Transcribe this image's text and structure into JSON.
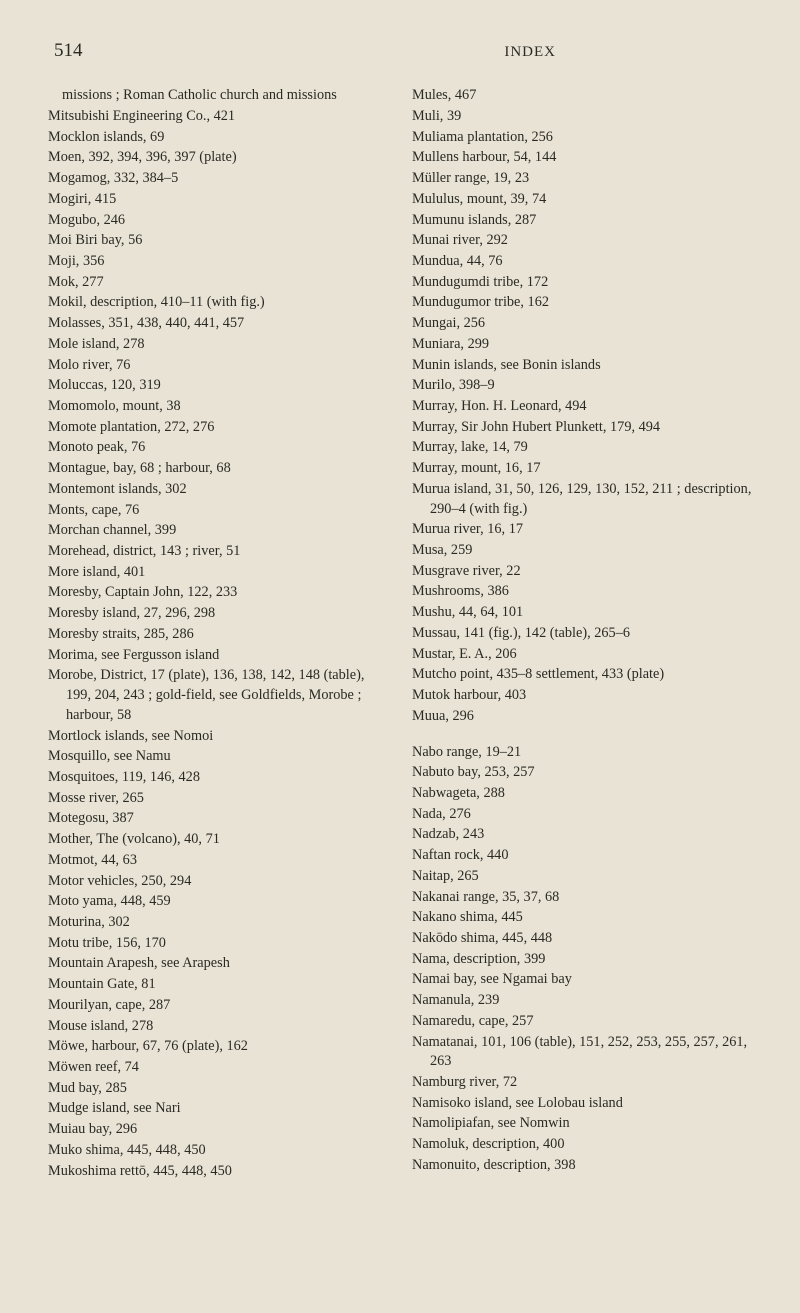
{
  "header": {
    "page_number": "514",
    "title": "INDEX"
  },
  "columns": {
    "left": [
      {
        "t": "entry",
        "indent": 1,
        "text": "missions ; Roman Catholic church and missions"
      },
      {
        "t": "entry",
        "text": "Mitsubishi Engineering Co., 421"
      },
      {
        "t": "entry",
        "text": "Mocklon islands, 69"
      },
      {
        "t": "entry",
        "text": "Moen, 392, 394, 396, 397 (plate)"
      },
      {
        "t": "entry",
        "text": "Mogamog, 332, 384–5"
      },
      {
        "t": "entry",
        "text": "Mogiri, 415"
      },
      {
        "t": "entry",
        "text": "Mogubo, 246"
      },
      {
        "t": "entry",
        "text": "Moi Biri bay, 56"
      },
      {
        "t": "entry",
        "text": "Moji, 356"
      },
      {
        "t": "entry",
        "text": "Mok, 277"
      },
      {
        "t": "entry",
        "text": "Mokil, description, 410–11 (with fig.)"
      },
      {
        "t": "entry",
        "text": "Molasses, 351, 438, 440, 441, 457"
      },
      {
        "t": "entry",
        "text": "Mole island, 278"
      },
      {
        "t": "entry",
        "text": "Molo river, 76"
      },
      {
        "t": "entry",
        "text": "Moluccas, 120, 319"
      },
      {
        "t": "entry",
        "text": "Momomolo, mount, 38"
      },
      {
        "t": "entry",
        "text": "Momote plantation, 272, 276"
      },
      {
        "t": "entry",
        "text": "Monoto peak, 76"
      },
      {
        "t": "entry",
        "text": "Montague, bay, 68 ; harbour, 68"
      },
      {
        "t": "entry",
        "text": "Montemont islands, 302"
      },
      {
        "t": "entry",
        "text": "Monts, cape, 76"
      },
      {
        "t": "entry",
        "text": "Morchan channel, 399"
      },
      {
        "t": "entry",
        "text": "Morehead, district, 143 ; river, 51"
      },
      {
        "t": "entry",
        "text": "More island, 401"
      },
      {
        "t": "entry",
        "text": "Moresby, Captain John, 122, 233"
      },
      {
        "t": "entry",
        "text": "Moresby island, 27, 296, 298"
      },
      {
        "t": "entry",
        "text": "Moresby straits, 285, 286"
      },
      {
        "t": "entry",
        "text": "Morima, see Fergusson island"
      },
      {
        "t": "entry",
        "text": "Morobe, District, 17 (plate), 136, 138, 142, 148 (table), 199, 204, 243 ; gold-field, see Goldfields, Morobe ; harbour, 58"
      },
      {
        "t": "entry",
        "text": "Mortlock islands, see Nomoi"
      },
      {
        "t": "entry",
        "text": "Mosquillo, see Namu"
      },
      {
        "t": "entry",
        "text": "Mosquitoes, 119, 146, 428"
      },
      {
        "t": "entry",
        "text": "Mosse river, 265"
      },
      {
        "t": "entry",
        "text": "Motegosu, 387"
      },
      {
        "t": "entry",
        "text": "Mother, The (volcano), 40, 71"
      },
      {
        "t": "entry",
        "text": "Motmot, 44, 63"
      },
      {
        "t": "entry",
        "text": "Motor vehicles, 250, 294"
      },
      {
        "t": "entry",
        "text": "Moto yama, 448, 459"
      },
      {
        "t": "entry",
        "text": "Moturina, 302"
      },
      {
        "t": "entry",
        "text": "Motu tribe, 156, 170"
      },
      {
        "t": "entry",
        "text": "Mountain Arapesh, see Arapesh"
      },
      {
        "t": "entry",
        "text": "Mountain Gate, 81"
      },
      {
        "t": "entry",
        "text": "Mourilyan, cape, 287"
      },
      {
        "t": "entry",
        "text": "Mouse island, 278"
      },
      {
        "t": "entry",
        "text": "Möwe, harbour, 67, 76 (plate), 162"
      },
      {
        "t": "entry",
        "text": "Möwen reef, 74"
      },
      {
        "t": "entry",
        "text": "Mud bay, 285"
      },
      {
        "t": "entry",
        "text": "Mudge island, see Nari"
      },
      {
        "t": "entry",
        "text": "Muiau bay, 296"
      },
      {
        "t": "entry",
        "text": "Muko shima, 445, 448, 450"
      },
      {
        "t": "entry",
        "text": "Mukoshima rettō, 445, 448, 450"
      }
    ],
    "right": [
      {
        "t": "entry",
        "text": "Mules, 467"
      },
      {
        "t": "entry",
        "text": "Muli, 39"
      },
      {
        "t": "entry",
        "text": "Muliama plantation, 256"
      },
      {
        "t": "entry",
        "text": "Mullens harbour, 54, 144"
      },
      {
        "t": "entry",
        "text": "Müller range, 19, 23"
      },
      {
        "t": "entry",
        "text": "Mululus, mount, 39, 74"
      },
      {
        "t": "entry",
        "text": "Mumunu islands, 287"
      },
      {
        "t": "entry",
        "text": "Munai river, 292"
      },
      {
        "t": "entry",
        "text": "Mundua, 44, 76"
      },
      {
        "t": "entry",
        "text": "Mundugumdi tribe, 172"
      },
      {
        "t": "entry",
        "text": "Mundugumor tribe, 162"
      },
      {
        "t": "entry",
        "text": "Mungai, 256"
      },
      {
        "t": "entry",
        "text": "Muniara, 299"
      },
      {
        "t": "entry",
        "text": "Munin islands, see Bonin islands"
      },
      {
        "t": "entry",
        "text": "Murilo, 398–9"
      },
      {
        "t": "entry",
        "text": "Murray, Hon. H. Leonard, 494"
      },
      {
        "t": "entry",
        "text": "Murray, Sir John Hubert Plunkett, 179, 494"
      },
      {
        "t": "entry",
        "text": "Murray, lake, 14, 79"
      },
      {
        "t": "entry",
        "text": "Murray, mount, 16, 17"
      },
      {
        "t": "entry",
        "text": "Murua island, 31, 50, 126, 129, 130, 152, 211 ; description, 290–4 (with fig.)"
      },
      {
        "t": "entry",
        "text": "Murua river, 16, 17"
      },
      {
        "t": "entry",
        "text": "Musa, 259"
      },
      {
        "t": "entry",
        "text": "Musgrave river, 22"
      },
      {
        "t": "entry",
        "text": "Mushrooms, 386"
      },
      {
        "t": "entry",
        "text": "Mushu, 44, 64, 101"
      },
      {
        "t": "entry",
        "text": "Mussau, 141 (fig.), 142 (table), 265–6"
      },
      {
        "t": "entry",
        "text": "Mustar, E. A., 206"
      },
      {
        "t": "entry",
        "text": "Mutcho point, 435–8 settlement, 433 (plate)"
      },
      {
        "t": "entry",
        "text": "Mutok harbour, 403"
      },
      {
        "t": "entry",
        "text": "Muua, 296"
      },
      {
        "t": "gap"
      },
      {
        "t": "entry",
        "text": "Nabo range, 19–21"
      },
      {
        "t": "entry",
        "text": "Nabuto bay, 253, 257"
      },
      {
        "t": "entry",
        "text": "Nabwageta, 288"
      },
      {
        "t": "entry",
        "text": "Nada, 276"
      },
      {
        "t": "entry",
        "text": "Nadzab, 243"
      },
      {
        "t": "entry",
        "text": "Naftan rock, 440"
      },
      {
        "t": "entry",
        "text": "Naitap, 265"
      },
      {
        "t": "entry",
        "text": "Nakanai range, 35, 37, 68"
      },
      {
        "t": "entry",
        "text": "Nakano shima, 445"
      },
      {
        "t": "entry",
        "text": "Nakōdo shima, 445, 448"
      },
      {
        "t": "entry",
        "text": "Nama, description, 399"
      },
      {
        "t": "entry",
        "text": "Namai bay, see Ngamai bay"
      },
      {
        "t": "entry",
        "text": "Namanula, 239"
      },
      {
        "t": "entry",
        "text": "Namaredu, cape, 257"
      },
      {
        "t": "entry",
        "text": "Namatanai, 101, 106 (table), 151, 252, 253, 255, 257, 261, 263"
      },
      {
        "t": "entry",
        "text": "Namburg river, 72"
      },
      {
        "t": "entry",
        "text": "Namisoko island, see Lolobau island"
      },
      {
        "t": "entry",
        "text": "Namolipiafan, see Nomwin"
      },
      {
        "t": "entry",
        "text": "Namoluk, description, 400"
      },
      {
        "t": "entry",
        "text": "Namonuito, description, 398"
      }
    ]
  }
}
